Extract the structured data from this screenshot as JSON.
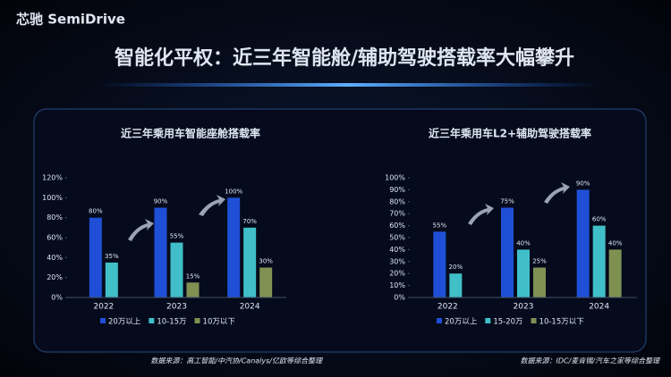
{
  "header": {
    "logo": "芯驰 SemiDrive",
    "title": "智能化平权：近三年智能舱/辅助驾驶搭载率大幅攀升"
  },
  "chart_data": [
    {
      "type": "bar",
      "title": "近三年乘用车智能座舱搭载率",
      "categories": [
        "2022",
        "2023",
        "2024"
      ],
      "series": [
        {
          "name": "20万以上",
          "color": "#1f4fd6",
          "values": [
            80,
            90,
            100
          ],
          "value_labels": [
            "80%",
            "90%",
            "100%"
          ]
        },
        {
          "name": "10-15万",
          "color": "#40bfc9",
          "values": [
            35,
            55,
            70
          ],
          "value_labels": [
            "35%",
            "55%",
            "70%"
          ]
        },
        {
          "name": "10万以下",
          "color": "#7f9152",
          "values": [
            null,
            15,
            30
          ],
          "value_labels": [
            null,
            "15%",
            "30%"
          ]
        }
      ],
      "ylim": [
        0,
        120
      ],
      "yticks": [
        {
          "value": 0,
          "label": "0%"
        },
        {
          "value": 20,
          "label": "20%"
        },
        {
          "value": 40,
          "label": "40%"
        },
        {
          "value": 60,
          "label": "60%"
        },
        {
          "value": 80,
          "label": "80%"
        },
        {
          "value": 100,
          "label": "100%"
        },
        {
          "value": 120,
          "label": "120%"
        }
      ],
      "source": "数据来源：高工智能/中汽协/Canalys/亿欧等综合整理"
    },
    {
      "type": "bar",
      "title": "近三年乘用车L2+辅助驾驶搭载率",
      "categories": [
        "2022",
        "2023",
        "2024"
      ],
      "series": [
        {
          "name": "20万以上",
          "color": "#1f4fd6",
          "values": [
            55,
            75,
            90
          ],
          "value_labels": [
            "55%",
            "75%",
            "90%"
          ]
        },
        {
          "name": "15-20万",
          "color": "#40bfc9",
          "values": [
            20,
            40,
            60
          ],
          "value_labels": [
            "20%",
            "40%",
            "60%"
          ]
        },
        {
          "name": "10-15万以下",
          "color": "#7f9152",
          "values": [
            null,
            25,
            40
          ],
          "value_labels": [
            null,
            "25%",
            "40%"
          ]
        }
      ],
      "ylim": [
        0,
        100
      ],
      "yticks": [
        {
          "value": 0,
          "label": "0%"
        },
        {
          "value": 10,
          "label": "10%"
        },
        {
          "value": 20,
          "label": "20%"
        },
        {
          "value": 30,
          "label": "30%"
        },
        {
          "value": 40,
          "label": "40%"
        },
        {
          "value": 50,
          "label": "50%"
        },
        {
          "value": 60,
          "label": "60%"
        },
        {
          "value": 70,
          "label": "70%"
        },
        {
          "value": 80,
          "label": "80%"
        },
        {
          "value": 90,
          "label": "90%"
        },
        {
          "value": 100,
          "label": "100%"
        }
      ],
      "source": "数据来源：IDC/麦肯锡/汽车之家等综合整理"
    }
  ]
}
